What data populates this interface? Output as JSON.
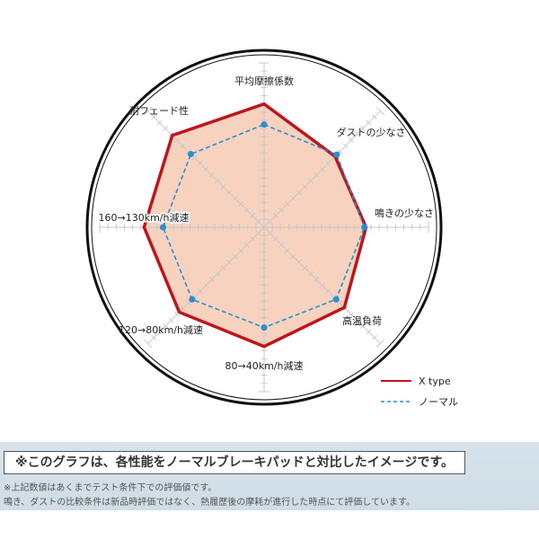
{
  "chart_data": {
    "type": "radar",
    "categories": [
      "平均摩擦係数",
      "ダストの少なさ",
      "鳴きの少なさ",
      "高温負荷",
      "80→40km/h減速",
      "120→80km/h減速",
      "160→130km/h減速",
      "耐フェード性"
    ],
    "rlim": [
      0,
      20
    ],
    "series": [
      {
        "name": "X type",
        "color": "#c0141c",
        "fill": "#f6d2bf",
        "values": [
          15,
          12.2,
          12.4,
          13.8,
          14.5,
          14.6,
          14.6,
          15.8
        ]
      },
      {
        "name": "ノーマル",
        "color": "#2a8fd0",
        "values": [
          12.5,
          12.5,
          12.2,
          12.4,
          12.2,
          12.4,
          12.3,
          12.6
        ]
      }
    ],
    "legend": "bottom-right"
  },
  "notes": {
    "boxed": "※このグラフは、各性能をノーマルブレーキパッドと対比したイメージです。",
    "line1": "※上記数値はあくまでテスト条件下での評価値です。",
    "line2": "鳴き、ダストの比較条件は新品時評価ではなく、熱履歴後の摩耗が進行した時点にて評価しています。"
  }
}
